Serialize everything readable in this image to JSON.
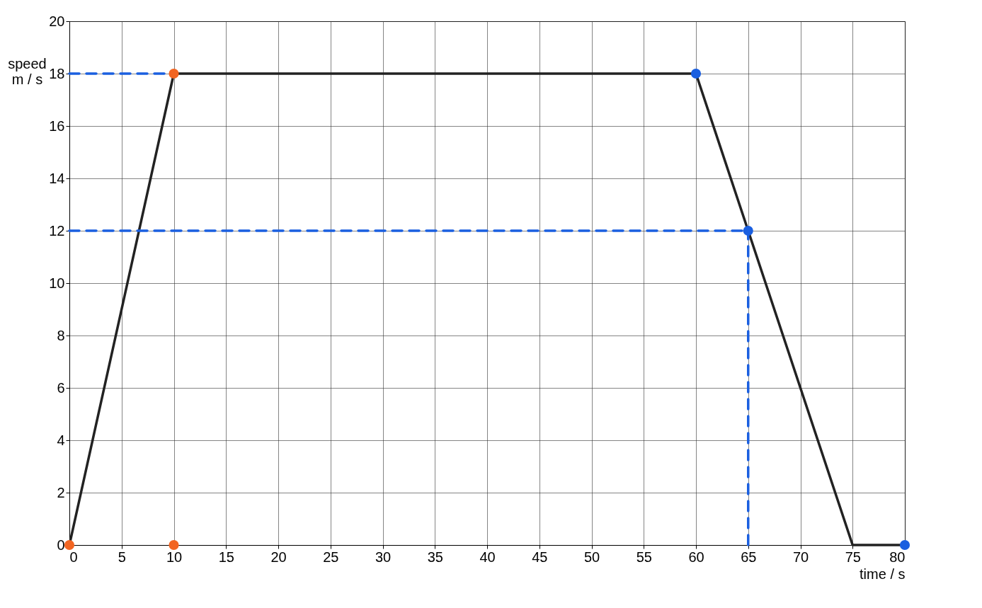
{
  "chart_data": {
    "type": "line",
    "xlabel": "time / s",
    "ylabel": "speed\nm / s",
    "x": [
      0,
      10,
      60,
      75,
      80
    ],
    "series": [
      {
        "color": "#222222",
        "values": [
          0,
          18,
          18,
          0,
          0
        ]
      },
      {
        "type": "line",
        "line_style": "dashed",
        "color": "#1a5fe0",
        "x": [
          0,
          10
        ],
        "values": [
          18,
          18
        ]
      },
      {
        "type": "line",
        "line_style": "dashed",
        "color": "#1a5fe0",
        "x": [
          0,
          65
        ],
        "values": [
          12,
          12
        ]
      },
      {
        "type": "line",
        "line_style": "dashed",
        "color": "#1a5fe0",
        "x": [
          65,
          65
        ],
        "values": [
          0,
          12
        ]
      },
      {
        "type": "scatter",
        "color": "#f26522",
        "x": [
          0,
          10,
          10
        ],
        "values": [
          0,
          18,
          0
        ]
      },
      {
        "type": "scatter",
        "color": "#1a5fe0",
        "x": [
          60,
          65,
          80
        ],
        "values": [
          18,
          12,
          0
        ]
      }
    ],
    "xlim": [
      0,
      80
    ],
    "xticks": [
      0,
      5,
      10,
      15,
      20,
      25,
      30,
      35,
      40,
      45,
      50,
      55,
      60,
      65,
      70,
      75,
      80
    ],
    "ylim": [
      0,
      20
    ],
    "yticks": [
      0,
      2,
      4,
      6,
      8,
      10,
      12,
      14,
      16,
      18,
      20
    ],
    "grid": true
  }
}
